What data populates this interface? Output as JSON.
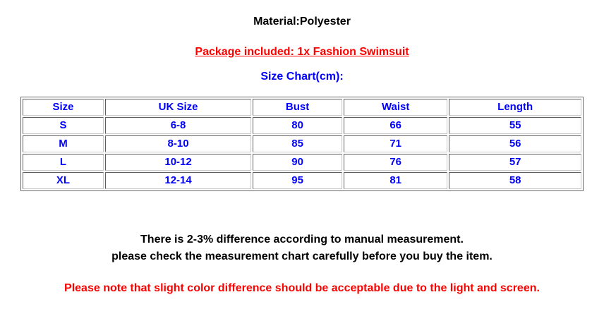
{
  "page": {
    "material_line": "Material:Polyester",
    "package_line": "Package included: 1x Fashion Swimsuit",
    "size_chart_title": "Size Chart(cm):",
    "note_line1": "There is 2-3% difference according to manual measurement.",
    "note_line2": "please check the measurement chart carefully before you buy the item.",
    "color_note": "Please note that slight color difference should be acceptable due to the light and screen."
  },
  "colors": {
    "material_text": "#000000",
    "package_text": "#ff0000",
    "size_chart_text": "#0000ff",
    "table_text": "#0000ff",
    "note_text": "#000000",
    "color_note_text": "#ff0000"
  },
  "size_table": {
    "col_widths_percent": [
      14.66,
      26.44,
      16.17,
      18.8,
      23.93
    ],
    "headers": [
      "Size",
      "UK Size",
      "Bust",
      "Waist",
      "Length"
    ],
    "rows": [
      [
        "S",
        "6-8",
        "80",
        "66",
        "55"
      ],
      [
        "M",
        "8-10",
        "85",
        "71",
        "56"
      ],
      [
        "L",
        "10-12",
        "90",
        "76",
        "57"
      ],
      [
        "XL",
        "12-14",
        "95",
        "81",
        "58"
      ]
    ]
  }
}
